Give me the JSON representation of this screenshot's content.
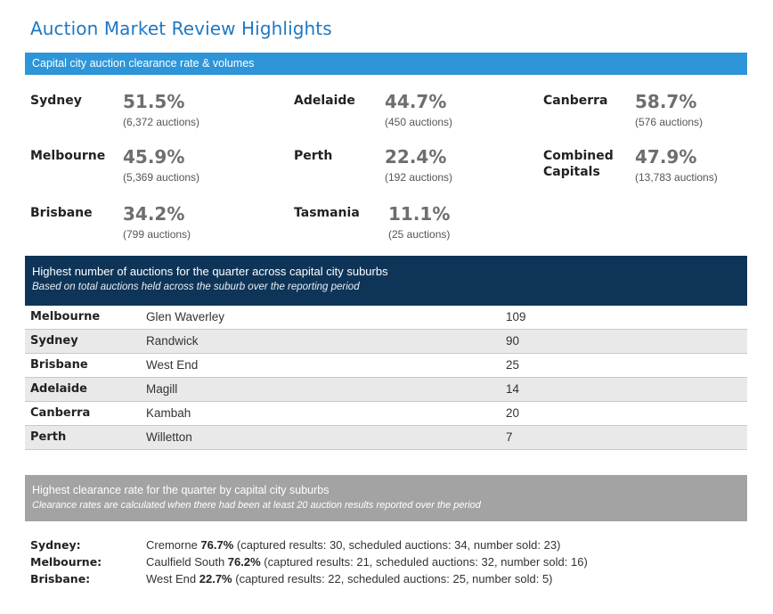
{
  "title": "Auction Market Review Highlights",
  "clearance_header": "Capital city auction clearance rate & volumes",
  "stats": {
    "sydney": {
      "city": "Sydney",
      "rate": "51.5%",
      "volume": "(6,372 auctions)"
    },
    "adelaide": {
      "city": "Adelaide",
      "rate": "44.7%",
      "volume": "(450 auctions)"
    },
    "canberra": {
      "city": "Canberra",
      "rate": "58.7%",
      "volume": "(576 auctions)"
    },
    "melbourne": {
      "city": "Melbourne",
      "rate": "45.9%",
      "volume": "(5,369 auctions)"
    },
    "perth": {
      "city": "Perth",
      "rate": "22.4%",
      "volume": "(192 auctions)"
    },
    "combined": {
      "city_line1": "Combined",
      "city_line2": "Capitals",
      "rate": "47.9%",
      "volume": "(13,783 auctions)"
    },
    "brisbane": {
      "city": "Brisbane",
      "rate": "34.2%",
      "volume": "(799 auctions)"
    },
    "tasmania": {
      "city": "Tasmania",
      "rate": "11.1%",
      "volume": "(25 auctions)"
    }
  },
  "suburbs_header": {
    "title": "Highest number of auctions for the quarter across capital city suburbs",
    "subtitle": "Based on total auctions held across the suburb over the reporting period"
  },
  "suburbs": [
    {
      "city": "Melbourne",
      "suburb": "Glen Waverley",
      "count": "109"
    },
    {
      "city": "Sydney",
      "suburb": "Randwick",
      "count": "90"
    },
    {
      "city": "Brisbane",
      "suburb": "West End",
      "count": "25"
    },
    {
      "city": "Adelaide",
      "suburb": "Magill",
      "count": "14"
    },
    {
      "city": "Canberra",
      "suburb": "Kambah",
      "count": "20"
    },
    {
      "city": "Perth",
      "suburb": "Willetton",
      "count": "7"
    }
  ],
  "clearance_rate_header": {
    "title": "Highest clearance rate for the quarter by capital city suburbs",
    "subtitle": "Clearance rates are calculated when there had been at least 20 auction results reported over the period"
  },
  "clearance_rates": [
    {
      "city": "Sydney:",
      "suburb": "Cremorne",
      "rate": "76.7%",
      "details": "(captured results: 30, scheduled auctions: 34, number sold: 23)"
    },
    {
      "city": "Melbourne:",
      "suburb": "Caulfield South",
      "rate": "76.2%",
      "details": "(captured results: 21, scheduled auctions: 32, number sold: 16)"
    },
    {
      "city": "Brisbane:",
      "suburb": "West End",
      "rate": "22.7%",
      "details": "(captured results: 22, scheduled auctions: 25, number sold: 5)"
    }
  ],
  "colors": {
    "title_blue": "#1f78c1",
    "header_blue": "#2e95d8",
    "header_navy": "#0e3558",
    "header_grey": "#a3a3a3",
    "rate_grey": "#6e6e6e"
  }
}
